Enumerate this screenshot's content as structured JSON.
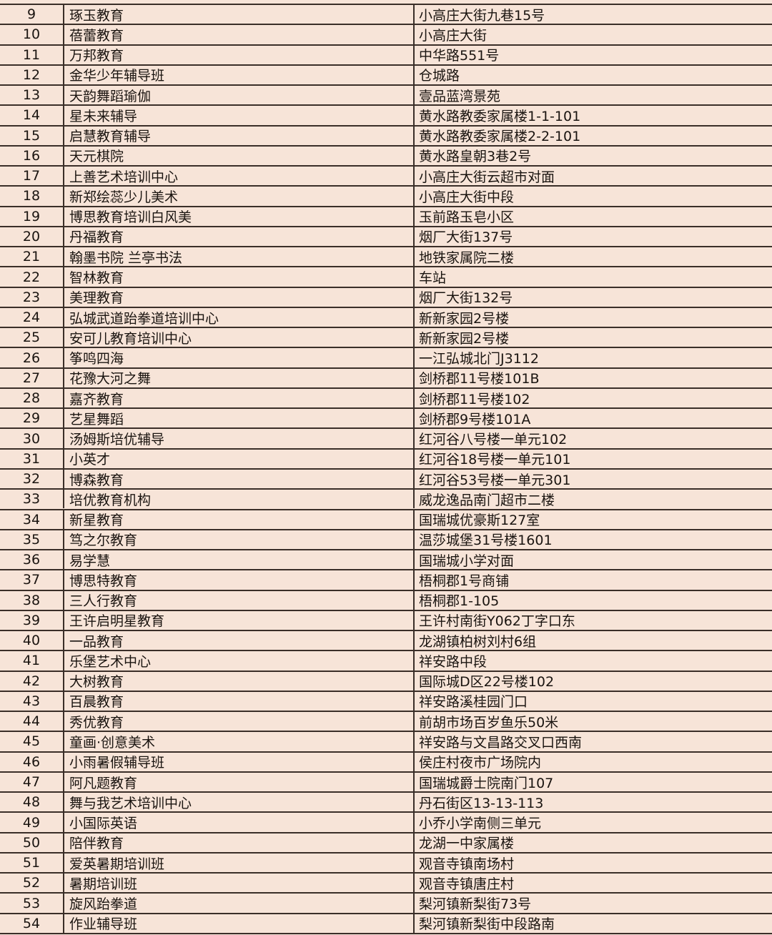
{
  "colors": {
    "background": "#f7e4d8",
    "grid": "#3a2e28",
    "text": "#1a1410"
  },
  "rows": [
    {
      "no": "9",
      "name": "琢玉教育",
      "address": "小高庄大街九巷15号"
    },
    {
      "no": "10",
      "name": "蓓蕾教育",
      "address": "小高庄大街"
    },
    {
      "no": "11",
      "name": "万邦教育",
      "address": "中华路551号"
    },
    {
      "no": "12",
      "name": "金华少年辅导班",
      "address": "仓城路"
    },
    {
      "no": "13",
      "name": "天韵舞蹈瑜伽",
      "address": "壹品蓝湾景苑"
    },
    {
      "no": "14",
      "name": "星未来辅导",
      "address": "黄水路教委家属楼1-1-101"
    },
    {
      "no": "15",
      "name": "启慧教育辅导",
      "address": "黄水路教委家属楼2-2-101"
    },
    {
      "no": "16",
      "name": "天元棋院",
      "address": "黄水路皇朝3巷2号"
    },
    {
      "no": "17",
      "name": "上善艺术培训中心",
      "address": "小高庄大街云超市对面"
    },
    {
      "no": "18",
      "name": "新郑绘蕊少儿美术",
      "address": "小高庄大街中段"
    },
    {
      "no": "19",
      "name": "博思教育培训白风美",
      "address": "玉前路玉皂小区"
    },
    {
      "no": "20",
      "name": "丹福教育",
      "address": "烟厂大街137号"
    },
    {
      "no": "21",
      "name": "翰墨书院 兰亭书法",
      "address": "地铁家属院二楼"
    },
    {
      "no": "22",
      "name": "智林教育",
      "address": "车站"
    },
    {
      "no": "23",
      "name": "美理教育",
      "address": "烟厂大街132号"
    },
    {
      "no": "24",
      "name": "弘城武道跆拳道培训中心",
      "address": "新新家园2号楼"
    },
    {
      "no": "25",
      "name": "安可儿教育培训中心",
      "address": "新新家园2号楼"
    },
    {
      "no": "26",
      "name": "筝鸣四海",
      "address": "一江弘城北门J3112"
    },
    {
      "no": "27",
      "name": "花豫大河之舞",
      "address": "剑桥郡11号楼101B"
    },
    {
      "no": "28",
      "name": "嘉齐教育",
      "address": "剑桥郡11号楼102"
    },
    {
      "no": "29",
      "name": "艺星舞蹈",
      "address": "剑桥郡9号楼101A"
    },
    {
      "no": "30",
      "name": "汤姆斯培优辅导",
      "address": "红河谷八号楼一单元102"
    },
    {
      "no": "31",
      "name": "小英才",
      "address": "红河谷18号楼一单元101"
    },
    {
      "no": "32",
      "name": "博森教育",
      "address": "红河谷53号楼一单元301"
    },
    {
      "no": "33",
      "name": "培优教育机构",
      "address": "威龙逸品南门超市二楼"
    },
    {
      "no": "34",
      "name": "新星教育",
      "address": "国瑞城优豪斯127室"
    },
    {
      "no": "35",
      "name": "笃之尔教育",
      "address": "温莎城堡31号楼1601"
    },
    {
      "no": "36",
      "name": "易学慧",
      "address": "国瑞城小学对面"
    },
    {
      "no": "37",
      "name": "博思特教育",
      "address": "梧桐郡1号商铺"
    },
    {
      "no": "38",
      "name": "三人行教育",
      "address": "梧桐郡1-105"
    },
    {
      "no": "39",
      "name": "王许启明星教育",
      "address": "王许村南街Y062丁字口东"
    },
    {
      "no": "40",
      "name": "一品教育",
      "address": "龙湖镇柏树刘村6组"
    },
    {
      "no": "41",
      "name": "乐堡艺术中心",
      "address": "祥安路中段"
    },
    {
      "no": "42",
      "name": "大树教育",
      "address": "国际城D区22号楼102"
    },
    {
      "no": "43",
      "name": "百晨教育",
      "address": "祥安路溪桂园门口"
    },
    {
      "no": "44",
      "name": "秀优教育",
      "address": "前胡市场百岁鱼乐50米"
    },
    {
      "no": "45",
      "name": "童画·创意美术",
      "address": "祥安路与文昌路交叉口西南"
    },
    {
      "no": "46",
      "name": "小雨暑假辅导班",
      "address": "侯庄村夜市广场院内"
    },
    {
      "no": "47",
      "name": "阿凡题教育",
      "address": "国瑞城爵士院南门107"
    },
    {
      "no": "48",
      "name": "舞与我艺术培训中心",
      "address": "丹石街区13-13-113"
    },
    {
      "no": "49",
      "name": "小国际英语",
      "address": "小乔小学南侧三单元"
    },
    {
      "no": "50",
      "name": "陪伴教育",
      "address": "龙湖一中家属楼"
    },
    {
      "no": "51",
      "name": "爱英暑期培训班",
      "address": "观音寺镇南场村"
    },
    {
      "no": "52",
      "name": "暑期培训班",
      "address": "观音寺镇唐庄村"
    },
    {
      "no": "53",
      "name": "旋风跆拳道",
      "address": "梨河镇新梨街73号"
    },
    {
      "no": "54",
      "name": "作业辅导班",
      "address": "梨河镇新梨街中段路南"
    }
  ]
}
